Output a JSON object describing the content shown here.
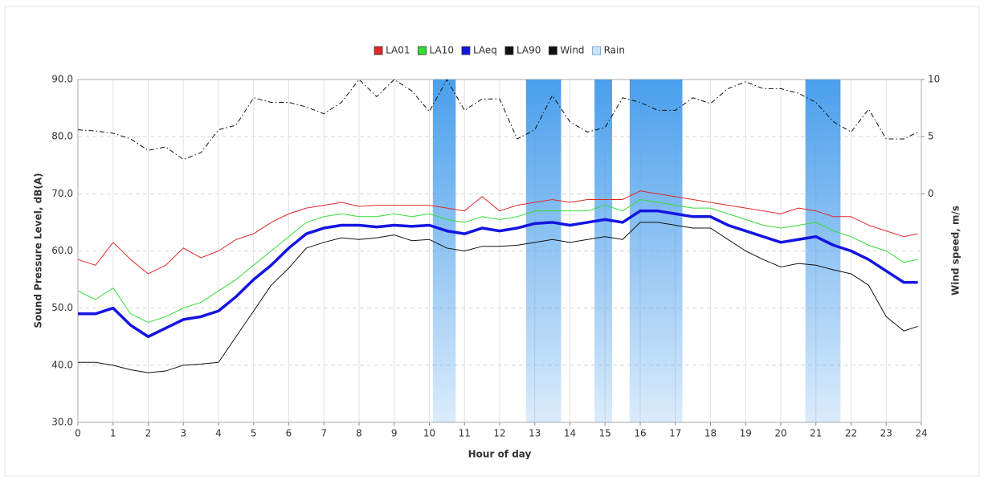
{
  "chart_data": {
    "type": "line",
    "x_label": "Hour of day",
    "y_label": "Sound Pressure Level, dB(A)",
    "y2_label": "Wind speed, m/s",
    "x": [
      0,
      0.5,
      1,
      1.5,
      2,
      2.5,
      3,
      3.5,
      4,
      4.5,
      5,
      5.5,
      6,
      6.5,
      7,
      7.5,
      8,
      8.5,
      9,
      9.5,
      10,
      10.5,
      11,
      11.5,
      12,
      12.5,
      13,
      13.5,
      14,
      14.5,
      15,
      15.5,
      16,
      16.5,
      17,
      17.5,
      18,
      18.5,
      19,
      19.5,
      20,
      20.5,
      21,
      21.5,
      22,
      22.5,
      23,
      23.5,
      23.9
    ],
    "xlim": [
      0,
      24
    ],
    "xticks": [
      0,
      1,
      2,
      3,
      4,
      5,
      6,
      7,
      8,
      9,
      10,
      11,
      12,
      13,
      14,
      15,
      16,
      17,
      18,
      19,
      20,
      21,
      22,
      23,
      24
    ],
    "ylim": [
      30,
      90
    ],
    "yticks": [
      {
        "value": 30,
        "label": "30.0"
      },
      {
        "value": 40,
        "label": "40.0"
      },
      {
        "value": 50,
        "label": "50.0"
      },
      {
        "value": 60,
        "label": "60.0"
      },
      {
        "value": 70,
        "label": "70.0"
      },
      {
        "value": 80,
        "label": "80.0"
      },
      {
        "value": 90,
        "label": "90.0"
      }
    ],
    "y2lim": [
      -20,
      10
    ],
    "y2ticks": [
      0,
      5,
      10
    ],
    "grid": true,
    "legend": "top",
    "series": [
      {
        "name": "LA01",
        "color": "#e02828",
        "line_width": 1,
        "values": [
          58.5,
          57.5,
          61.5,
          58.5,
          56,
          57.5,
          60.5,
          58.8,
          60,
          62,
          63,
          65,
          66.5,
          67.5,
          68,
          68.5,
          67.8,
          68,
          68,
          68,
          68,
          67.5,
          67,
          69.5,
          67,
          68,
          68.5,
          69,
          68.5,
          69,
          69,
          69,
          70.5,
          70,
          69.5,
          69,
          68.5,
          68,
          67.5,
          67,
          66.5,
          67.5,
          67,
          66,
          66,
          64.5,
          63.5,
          62.5,
          63
        ]
      },
      {
        "name": "LA10",
        "color": "#33dd33",
        "line_width": 1,
        "values": [
          53,
          51.5,
          53.5,
          49,
          47.5,
          48.5,
          50,
          51,
          53,
          55,
          57.5,
          60,
          62.5,
          65,
          66,
          66.5,
          66,
          66,
          66.5,
          66,
          66.5,
          65.5,
          65,
          66,
          65.5,
          66,
          67,
          67,
          67,
          67,
          68,
          67,
          69,
          68.5,
          68,
          67.5,
          67.5,
          66.5,
          65.5,
          64.5,
          64,
          64.5,
          65,
          63.5,
          62.5,
          61,
          60,
          58,
          58.5
        ]
      },
      {
        "name": "LAeq",
        "color": "#1414e0",
        "line_width": 3.5,
        "values": [
          49,
          49,
          50,
          47,
          45,
          46.5,
          48,
          48.5,
          49.5,
          52,
          55,
          57.5,
          60.5,
          63,
          64,
          64.5,
          64.5,
          64.2,
          64.5,
          64.3,
          64.5,
          63.5,
          63,
          64,
          63.5,
          64,
          64.8,
          65,
          64.5,
          65,
          65.5,
          65,
          67,
          67,
          66.5,
          66,
          66,
          64.5,
          63.5,
          62.5,
          61.5,
          62,
          62.5,
          61,
          60,
          58.5,
          56.5,
          54.5,
          54.5
        ]
      },
      {
        "name": "LA90",
        "color": "#111111",
        "line_width": 1,
        "values": [
          40.5,
          40.5,
          40,
          39.2,
          38.7,
          39,
          40,
          40.2,
          40.5,
          45,
          49.5,
          54,
          57,
          60.5,
          61.5,
          62.3,
          62,
          62.3,
          62.8,
          61.8,
          62,
          60.5,
          60,
          60.8,
          60.8,
          61,
          61.5,
          62,
          61.5,
          62,
          62.5,
          62,
          65,
          65,
          64.5,
          64,
          64,
          62,
          60,
          58.5,
          57.2,
          57.8,
          57.5,
          56.7,
          56,
          54,
          48.5,
          46,
          46.8
        ]
      },
      {
        "name": "Wind",
        "color": "#111111",
        "line_width": 1,
        "dash": "dashdot",
        "axis": "y2",
        "values": [
          5.6,
          5.5,
          5.3,
          4.8,
          3.8,
          4.1,
          3,
          3.6,
          5.6,
          6,
          8.4,
          8,
          8,
          7.6,
          7,
          8,
          10,
          8.5,
          10,
          9,
          7.2,
          10,
          7.3,
          8.3,
          8.3,
          4.8,
          5.6,
          8.6,
          6.3,
          5.4,
          5.8,
          8.4,
          8,
          7.3,
          7.3,
          8.4,
          7.9,
          9.2,
          9.8,
          9.2,
          9.2,
          8.8,
          8,
          6.3,
          5.4,
          7.4,
          4.8,
          4.8,
          5.4
        ]
      },
      {
        "name": "Rain",
        "color": "#4a9fec",
        "spans": [
          [
            10.1,
            10.75
          ],
          [
            12.75,
            13.75
          ],
          [
            14.7,
            15.2
          ],
          [
            15.7,
            17.2
          ],
          [
            20.7,
            21.7
          ]
        ]
      }
    ]
  }
}
